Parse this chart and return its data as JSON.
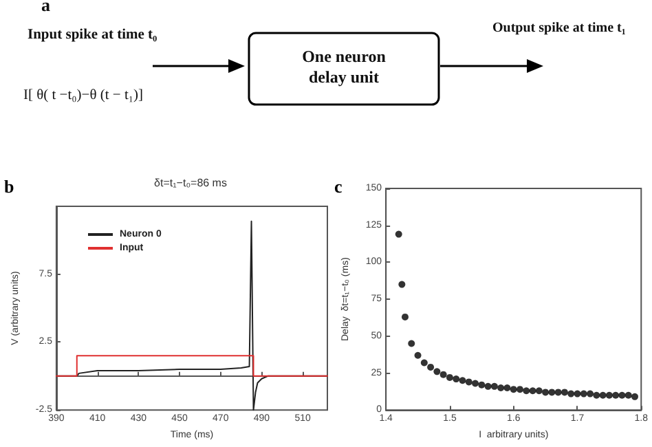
{
  "chart_data": [
    {
      "type": "other",
      "annotations": [
        "a",
        "Input spike at time t₀",
        "One neuron delay unit",
        "Output spike at time t₁",
        "I[ θ( t −t₀)−θ (t − t₁)]"
      ]
    },
    {
      "type": "line",
      "title": "δt=t₁−t₀=86 ms",
      "xlabel": "Time (ms)",
      "ylabel": "V (arbitrary units)",
      "annotations": [
        "b"
      ],
      "legend": "top left",
      "marker": "none",
      "line_style": "solid",
      "xlim": [
        390,
        522
      ],
      "xticks": [
        390,
        410,
        430,
        450,
        470,
        490,
        510
      ],
      "ylim": [
        -2.5,
        12.5
      ],
      "yticks": [
        -2.5,
        2.5,
        7.5
      ],
      "series": [
        {
          "name": "Neuron 0",
          "color": "#222222",
          "x": [
            390,
            400,
            401,
            410,
            430,
            450,
            470,
            480,
            484,
            485,
            486,
            487,
            488,
            490,
            493,
            522
          ],
          "values": [
            0,
            0,
            0.2,
            0.4,
            0.4,
            0.5,
            0.5,
            0.6,
            0.7,
            11.4,
            -2.5,
            -1.2,
            -0.5,
            -0.2,
            0,
            0
          ]
        },
        {
          "name": "Input",
          "color": "#e03030",
          "x": [
            390,
            400,
            400,
            486,
            486,
            522
          ],
          "values": [
            0,
            0,
            1.5,
            1.5,
            0,
            0
          ]
        }
      ]
    },
    {
      "type": "scatter",
      "xlabel": "I  arbitrary units)",
      "ylabel": "Delay  δt=t₁−t₀ (ms)",
      "annotations": [
        "c"
      ],
      "marker": "circle",
      "xlim": [
        1.4,
        1.8
      ],
      "xticks": [
        1.4,
        1.5,
        1.6,
        1.7,
        1.8
      ],
      "ylim": [
        0,
        150
      ],
      "yticks": [
        0,
        25,
        50,
        75,
        100,
        125,
        150
      ],
      "series": [
        {
          "color": "#000000",
          "x": [
            1.42,
            1.425,
            1.43,
            1.44,
            1.45,
            1.46,
            1.47,
            1.48,
            1.49,
            1.5,
            1.51,
            1.52,
            1.53,
            1.54,
            1.55,
            1.56,
            1.57,
            1.58,
            1.59,
            1.6,
            1.61,
            1.62,
            1.63,
            1.64,
            1.65,
            1.66,
            1.67,
            1.68,
            1.69,
            1.7,
            1.71,
            1.72,
            1.73,
            1.74,
            1.75,
            1.76,
            1.77,
            1.78,
            1.79
          ],
          "values": [
            119,
            85,
            63,
            45,
            37,
            32,
            29,
            26,
            24,
            22,
            21,
            20,
            19,
            18,
            17,
            16,
            16,
            15,
            15,
            14,
            14,
            13,
            13,
            13,
            12,
            12,
            12,
            12,
            11,
            11,
            11,
            11,
            10,
            10,
            10,
            10,
            10,
            10,
            9
          ]
        }
      ]
    }
  ]
}
